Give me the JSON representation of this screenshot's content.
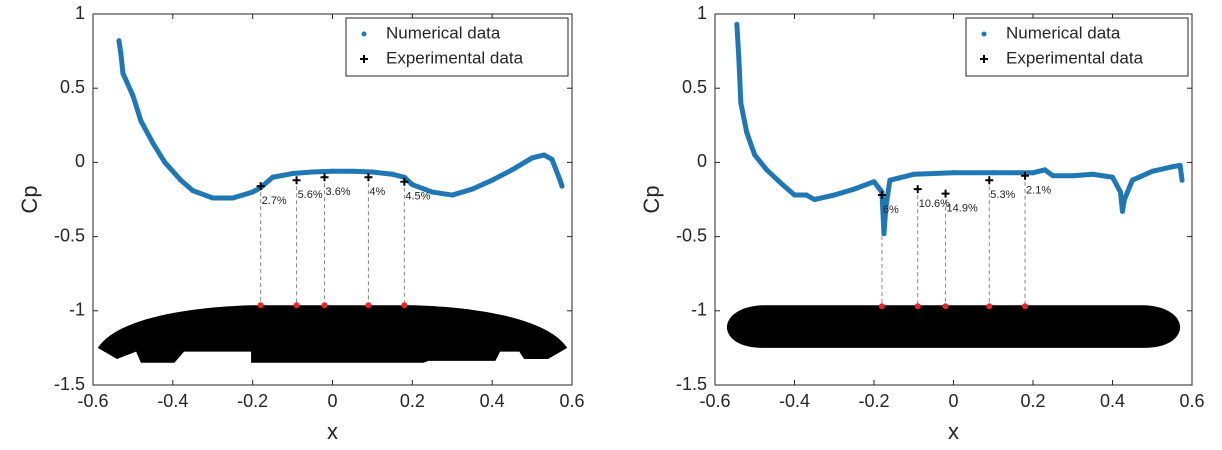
{
  "chart_data": [
    {
      "type": "scatter",
      "xlabel": "x",
      "ylabel": "Cp",
      "xlim": [
        -0.6,
        0.6
      ],
      "xticks": [
        -0.6,
        -0.4,
        -0.2,
        0,
        0.2,
        0.4,
        0.6
      ],
      "ylim": [
        -1.5,
        1
      ],
      "yticks": [
        -1.5,
        -1,
        -0.5,
        0,
        0.5,
        1
      ],
      "legend": "upper right",
      "series": [
        {
          "name": "Numerical data",
          "color": "#1f77b4",
          "x": [
            -0.535,
            -0.53,
            -0.525,
            -0.5,
            -0.48,
            -0.45,
            -0.42,
            -0.38,
            -0.35,
            -0.3,
            -0.25,
            -0.2,
            -0.18,
            -0.15,
            -0.1,
            -0.05,
            0,
            0.05,
            0.1,
            0.15,
            0.18,
            0.2,
            0.25,
            0.3,
            0.35,
            0.4,
            0.45,
            0.5,
            0.53,
            0.55,
            0.57,
            0.575
          ],
          "values": [
            0.82,
            0.73,
            0.6,
            0.45,
            0.28,
            0.13,
            0.0,
            -0.12,
            -0.19,
            -0.24,
            -0.24,
            -0.2,
            -0.17,
            -0.1,
            -0.075,
            -0.065,
            -0.06,
            -0.06,
            -0.065,
            -0.08,
            -0.1,
            -0.15,
            -0.2,
            -0.22,
            -0.18,
            -0.12,
            -0.05,
            0.03,
            0.05,
            0.02,
            -0.12,
            -0.16
          ]
        },
        {
          "name": "Experimental data",
          "color": "#000000",
          "x": [
            -0.18,
            -0.09,
            -0.02,
            0.09,
            0.18
          ],
          "values": [
            -0.16,
            -0.12,
            -0.1,
            -0.1,
            -0.13
          ]
        }
      ],
      "annotations": [
        "2.7%",
        "5.6%",
        "3.6%",
        "4%",
        "4.5%"
      ]
    },
    {
      "type": "scatter",
      "xlabel": "x",
      "ylabel": "Cp",
      "xlim": [
        -0.6,
        0.6
      ],
      "xticks": [
        -0.6,
        -0.4,
        -0.2,
        0,
        0.2,
        0.4,
        0.6
      ],
      "ylim": [
        -1.5,
        1
      ],
      "yticks": [
        -1.5,
        -1,
        -0.5,
        0,
        0.5,
        1
      ],
      "legend": "upper right",
      "series": [
        {
          "name": "Numerical data",
          "color": "#1f77b4",
          "x": [
            -0.545,
            -0.54,
            -0.535,
            -0.52,
            -0.5,
            -0.47,
            -0.43,
            -0.4,
            -0.37,
            -0.35,
            -0.3,
            -0.25,
            -0.2,
            -0.18,
            -0.175,
            -0.17,
            -0.16,
            -0.1,
            0,
            0.1,
            0.2,
            0.23,
            0.25,
            0.3,
            0.35,
            0.4,
            0.42,
            0.425,
            0.43,
            0.45,
            0.5,
            0.55,
            0.57,
            0.575
          ],
          "values": [
            0.93,
            0.7,
            0.4,
            0.2,
            0.05,
            -0.05,
            -0.15,
            -0.22,
            -0.22,
            -0.25,
            -0.22,
            -0.18,
            -0.13,
            -0.2,
            -0.48,
            -0.3,
            -0.12,
            -0.08,
            -0.07,
            -0.07,
            -0.07,
            -0.05,
            -0.09,
            -0.09,
            -0.08,
            -0.1,
            -0.2,
            -0.33,
            -0.25,
            -0.12,
            -0.06,
            -0.03,
            -0.02,
            -0.12
          ]
        },
        {
          "name": "Experimental data",
          "color": "#000000",
          "x": [
            -0.18,
            -0.09,
            -0.02,
            0.09,
            0.18
          ],
          "values": [
            -0.22,
            -0.18,
            -0.21,
            -0.12,
            -0.09
          ]
        }
      ],
      "annotations": [
        "6%",
        "10.6%",
        "14.9%",
        "5.3%",
        "2.1%"
      ]
    }
  ]
}
